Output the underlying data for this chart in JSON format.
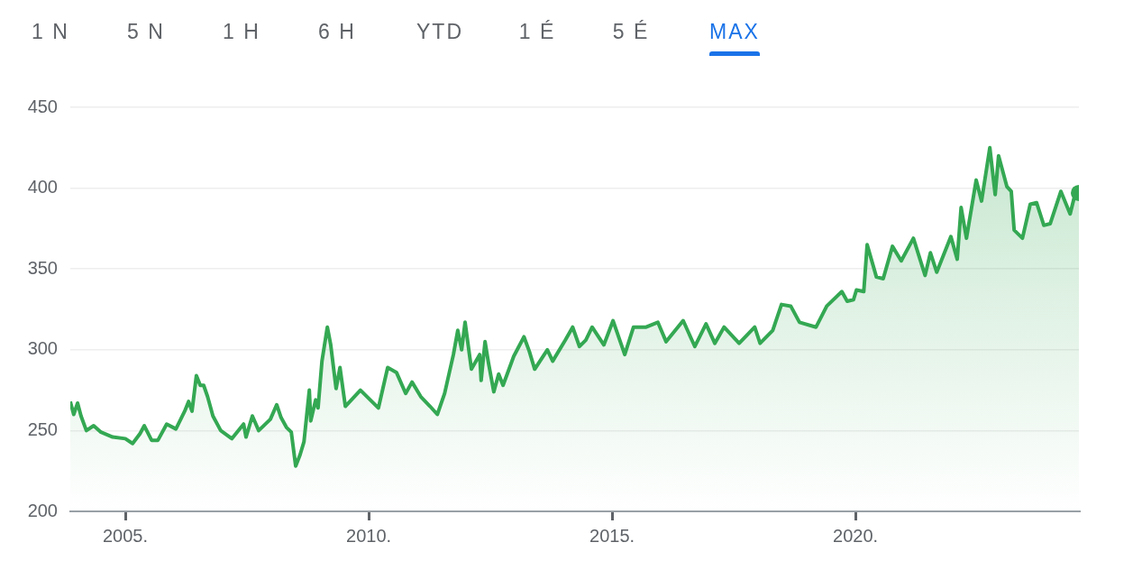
{
  "chart_data": {
    "type": "area",
    "annotations": [
      "1 N",
      "5 N",
      "1 H",
      "6 H",
      "YTD",
      "1 É",
      "5 É",
      "MAX"
    ],
    "series": [
      {
        "color": "#34a853",
        "x": [
          2003.87,
          2003.94,
          2004.02,
          2004.09,
          2004.2,
          2004.35,
          2004.5,
          2004.74,
          2005.0,
          2005.15,
          2005.3,
          2005.39,
          2005.54,
          2005.67,
          2005.85,
          2006.04,
          2006.22,
          2006.3,
          2006.37,
          2006.46,
          2006.54,
          2006.61,
          2006.69,
          2006.8,
          2006.96,
          2007.19,
          2007.43,
          2007.48,
          2007.61,
          2007.74,
          2007.98,
          2008.11,
          2008.2,
          2008.31,
          2008.41,
          2008.5,
          2008.59,
          2008.67,
          2008.78,
          2008.81,
          2008.91,
          2008.96,
          2009.04,
          2009.15,
          2009.22,
          2009.33,
          2009.41,
          2009.52,
          2009.83,
          2010.2,
          2010.39,
          2010.57,
          2010.76,
          2010.89,
          2011.07,
          2011.26,
          2011.41,
          2011.56,
          2011.74,
          2011.83,
          2011.91,
          2011.98,
          2012.11,
          2012.28,
          2012.31,
          2012.39,
          2012.46,
          2012.57,
          2012.67,
          2012.76,
          2012.98,
          2013.19,
          2013.3,
          2013.41,
          2013.67,
          2013.78,
          2014.04,
          2014.19,
          2014.33,
          2014.46,
          2014.59,
          2014.83,
          2015.02,
          2015.26,
          2015.44,
          2015.7,
          2015.94,
          2016.11,
          2016.46,
          2016.7,
          2016.93,
          2017.11,
          2017.3,
          2017.61,
          2017.93,
          2018.04,
          2018.3,
          2018.48,
          2018.67,
          2018.85,
          2019.19,
          2019.41,
          2019.72,
          2019.83,
          2019.96,
          2020.02,
          2020.17,
          2020.24,
          2020.43,
          2020.57,
          2020.76,
          2020.94,
          2021.19,
          2021.43,
          2021.54,
          2021.67,
          2021.96,
          2022.09,
          2022.17,
          2022.28,
          2022.48,
          2022.59,
          2022.76,
          2022.87,
          2022.94,
          2023.11,
          2023.2,
          2023.26,
          2023.43,
          2023.59,
          2023.72,
          2023.87,
          2024.0,
          2024.22,
          2024.41,
          2024.5,
          2024.59
        ],
        "values": [
          268,
          260,
          267,
          259,
          250,
          253,
          249,
          246,
          245,
          242,
          248,
          253,
          244,
          244,
          254,
          251,
          262,
          268,
          262,
          284,
          278,
          278,
          271,
          259,
          250,
          245,
          254,
          246,
          259,
          250,
          257,
          266,
          258,
          252,
          249,
          228,
          235,
          243,
          275,
          256,
          269,
          264,
          293,
          314,
          303,
          276,
          289,
          265,
          275,
          264,
          289,
          286,
          273,
          280,
          271,
          265,
          260,
          273,
          297,
          312,
          300,
          317,
          288,
          297,
          281,
          305,
          292,
          274,
          285,
          278,
          296,
          308,
          299,
          288,
          300,
          293,
          306,
          314,
          302,
          306,
          314,
          303,
          318,
          297,
          314,
          314,
          317,
          305,
          318,
          302,
          316,
          304,
          314,
          304,
          314,
          304,
          312,
          328,
          327,
          317,
          314,
          327,
          336,
          330,
          331,
          337,
          336,
          365,
          345,
          344,
          364,
          355,
          369,
          346,
          360,
          348,
          370,
          356,
          388,
          369,
          405,
          392,
          425,
          396,
          420,
          401,
          398,
          374,
          369,
          390,
          391,
          377,
          378,
          398,
          384,
          395,
          397
        ]
      }
    ],
    "xlim": [
      2003.87,
      2024.59
    ],
    "xticks": [
      {
        "value": 2005,
        "label": "2005."
      },
      {
        "value": 2010,
        "label": "2010."
      },
      {
        "value": 2015,
        "label": "2015."
      },
      {
        "value": 2020,
        "label": "2020."
      }
    ],
    "ylim": [
      200,
      450
    ],
    "yticks": [
      200,
      250,
      300,
      350,
      400,
      450
    ],
    "grid": "y"
  }
}
